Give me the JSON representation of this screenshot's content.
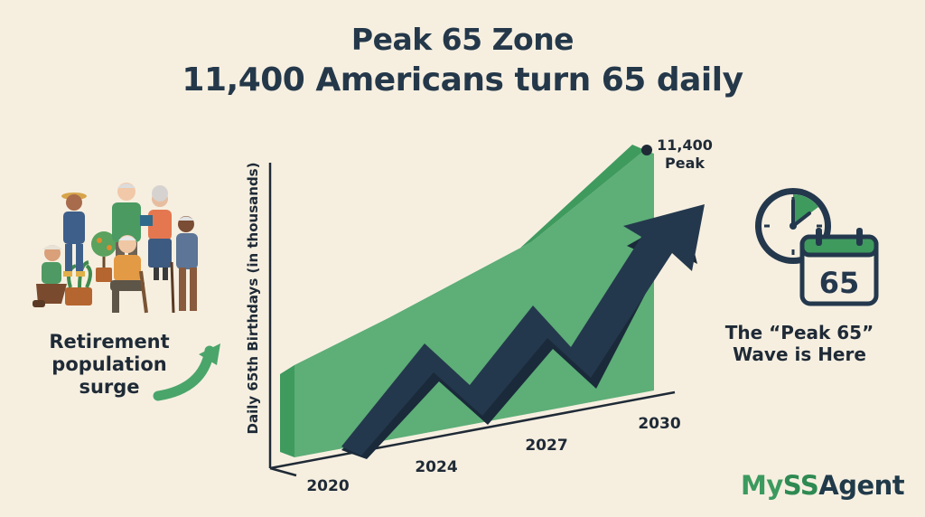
{
  "title": {
    "line1": "Peak 65 Zone",
    "line2": "11,400 Americans turn 65 daily"
  },
  "chart_data": {
    "type": "area",
    "ylabel": "Daily 65th Birthdays (in thousands)",
    "x_tick_labels": [
      "2020",
      "2024",
      "2027",
      "2030"
    ],
    "peak_annotation": {
      "value": "11,400",
      "label": "Peak"
    },
    "colors": {
      "area_front": "#5dae77",
      "area_top": "#3f9a5e",
      "arrow": "#24384d",
      "axis": "#1f2a36"
    }
  },
  "left_caption": {
    "line1": "Retirement",
    "line2": "population",
    "line3": "surge",
    "arrow_icon": "curved-up-arrow-icon"
  },
  "right_caption": {
    "line1": "The “Peak 65”",
    "line2": "Wave is Here",
    "calendar_number": "65",
    "icons": [
      "clock-icon",
      "calendar-icon"
    ]
  },
  "brand": {
    "my": "My",
    "ss": "SS",
    "agent": "Agent"
  },
  "illustration": "seniors-group-icon"
}
